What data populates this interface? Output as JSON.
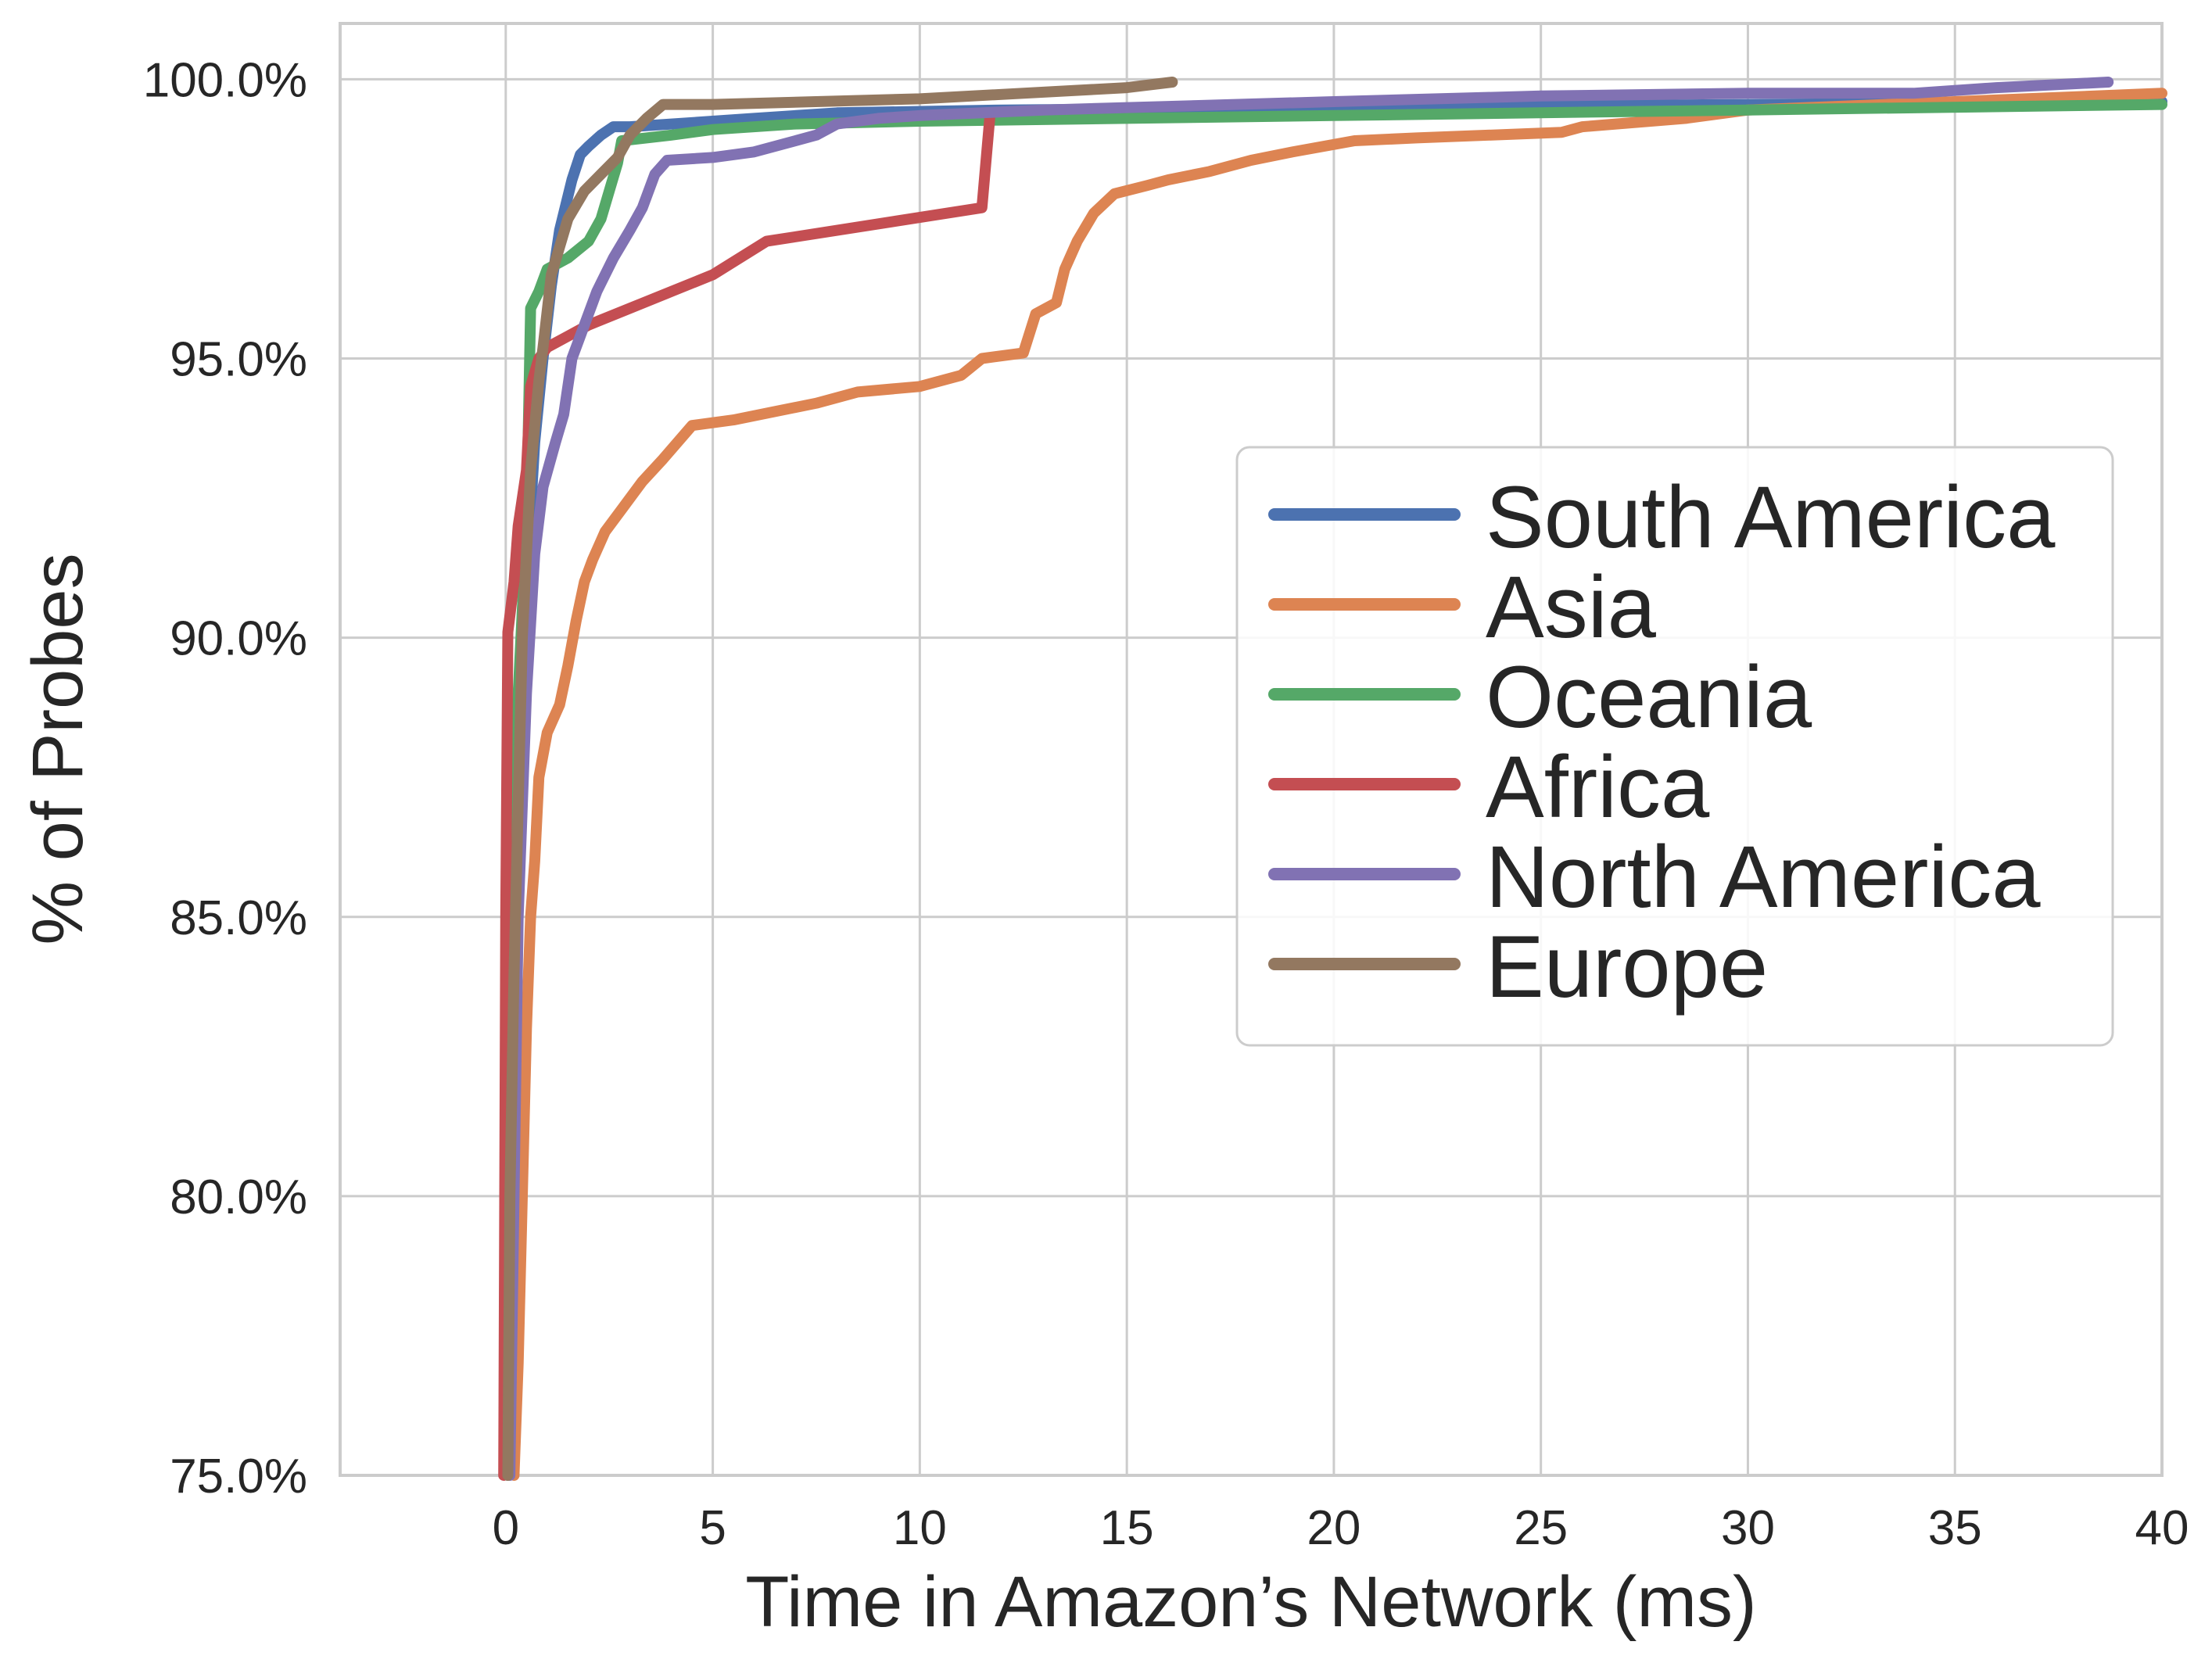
{
  "chart_data": {
    "type": "line",
    "title": "",
    "xlabel": "Time in Amazon’s Network (ms)",
    "ylabel": "% of Probes",
    "xlim": [
      -4,
      40
    ],
    "ylim": [
      75,
      101
    ],
    "xticks": [
      0,
      5,
      10,
      15,
      20,
      25,
      30,
      35,
      40
    ],
    "xtick_labels": [
      "0",
      "5",
      "10",
      "15",
      "20",
      "25",
      "30",
      "35",
      "40"
    ],
    "yticks": [
      75,
      80,
      85,
      90,
      95,
      100
    ],
    "ytick_labels": [
      "75.0%",
      "80.0%",
      "85.0%",
      "90.0%",
      "95.0%",
      "100.0%"
    ],
    "grid": true,
    "legend_position": "center-right",
    "series": [
      {
        "name": "South America",
        "color": "#4c72b0",
        "points": [
          [
            0.05,
            75
          ],
          [
            0.1,
            80
          ],
          [
            0.2,
            85
          ],
          [
            0.3,
            88
          ],
          [
            0.5,
            91
          ],
          [
            0.7,
            93.5
          ],
          [
            0.9,
            95
          ],
          [
            1.1,
            96.3
          ],
          [
            1.3,
            97.3
          ],
          [
            1.6,
            98.2
          ],
          [
            1.8,
            98.65
          ],
          [
            2.0,
            98.8
          ],
          [
            2.3,
            99.0
          ],
          [
            2.6,
            99.15
          ],
          [
            3.0,
            99.15
          ],
          [
            4.0,
            99.2
          ],
          [
            6.0,
            99.3
          ],
          [
            8.0,
            99.4
          ],
          [
            12.0,
            99.45
          ],
          [
            20.0,
            99.5
          ],
          [
            30.0,
            99.55
          ],
          [
            40.0,
            99.6
          ]
        ]
      },
      {
        "name": "Asia",
        "color": "#dd8452",
        "points": [
          [
            0.2,
            75
          ],
          [
            0.3,
            77
          ],
          [
            0.4,
            80
          ],
          [
            0.5,
            83
          ],
          [
            0.6,
            85
          ],
          [
            0.7,
            86
          ],
          [
            0.8,
            87.5
          ],
          [
            1.0,
            88.3
          ],
          [
            1.3,
            88.8
          ],
          [
            1.5,
            89.5
          ],
          [
            1.7,
            90.3
          ],
          [
            1.9,
            91.0
          ],
          [
            2.1,
            91.4
          ],
          [
            2.4,
            91.9
          ],
          [
            2.8,
            92.3
          ],
          [
            3.3,
            92.8
          ],
          [
            3.8,
            93.2
          ],
          [
            4.5,
            93.8
          ],
          [
            5.5,
            93.9
          ],
          [
            6.5,
            94.05
          ],
          [
            7.5,
            94.2
          ],
          [
            8.5,
            94.4
          ],
          [
            10.0,
            94.5
          ],
          [
            11.0,
            94.7
          ],
          [
            11.5,
            95.0
          ],
          [
            12.5,
            95.1
          ],
          [
            12.8,
            95.8
          ],
          [
            13.3,
            96.0
          ],
          [
            13.5,
            96.6
          ],
          [
            13.8,
            97.1
          ],
          [
            14.2,
            97.6
          ],
          [
            14.7,
            97.95
          ],
          [
            15.5,
            98.1
          ],
          [
            16.0,
            98.2
          ],
          [
            17.0,
            98.35
          ],
          [
            18.0,
            98.55
          ],
          [
            19.0,
            98.7
          ],
          [
            20.5,
            98.9
          ],
          [
            22.0,
            98.95
          ],
          [
            25.5,
            99.05
          ],
          [
            26.0,
            99.15
          ],
          [
            28.5,
            99.3
          ],
          [
            30.0,
            99.45
          ],
          [
            35.0,
            99.6
          ],
          [
            40.0,
            99.75
          ]
        ]
      },
      {
        "name": "Oceania",
        "color": "#55a868",
        "points": [
          [
            0.05,
            75
          ],
          [
            0.1,
            80
          ],
          [
            0.2,
            86
          ],
          [
            0.3,
            89
          ],
          [
            0.5,
            92
          ],
          [
            0.6,
            95.9
          ],
          [
            0.8,
            96.2
          ],
          [
            1.0,
            96.6
          ],
          [
            1.5,
            96.8
          ],
          [
            2.0,
            97.1
          ],
          [
            2.3,
            97.5
          ],
          [
            2.5,
            98.0
          ],
          [
            2.7,
            98.5
          ],
          [
            2.8,
            98.9
          ],
          [
            4.0,
            99.0
          ],
          [
            5.0,
            99.1
          ],
          [
            7.0,
            99.2
          ],
          [
            10.0,
            99.25
          ],
          [
            15.0,
            99.3
          ],
          [
            20.0,
            99.35
          ],
          [
            30.0,
            99.45
          ],
          [
            40.0,
            99.55
          ]
        ]
      },
      {
        "name": "Africa",
        "color": "#c44e52",
        "points": [
          [
            -0.05,
            75
          ],
          [
            0.0,
            85
          ],
          [
            0.05,
            90.1
          ],
          [
            0.2,
            91.0
          ],
          [
            0.3,
            92.0
          ],
          [
            0.5,
            93.0
          ],
          [
            0.6,
            94.5
          ],
          [
            0.8,
            95.0
          ],
          [
            1.0,
            95.2
          ],
          [
            1.5,
            95.4
          ],
          [
            2.0,
            95.6
          ],
          [
            3.0,
            95.9
          ],
          [
            4.0,
            96.2
          ],
          [
            5.0,
            96.5
          ],
          [
            6.3,
            97.1
          ],
          [
            11.5,
            97.7
          ],
          [
            11.7,
            99.4
          ]
        ]
      },
      {
        "name": "North America",
        "color": "#8172b3",
        "points": [
          [
            0.1,
            75
          ],
          [
            0.2,
            80
          ],
          [
            0.3,
            85
          ],
          [
            0.5,
            89
          ],
          [
            0.7,
            91.5
          ],
          [
            0.9,
            92.7
          ],
          [
            1.2,
            93.5
          ],
          [
            1.4,
            94.0
          ],
          [
            1.6,
            95.0
          ],
          [
            1.9,
            95.6
          ],
          [
            2.2,
            96.2
          ],
          [
            2.6,
            96.8
          ],
          [
            3.0,
            97.3
          ],
          [
            3.3,
            97.7
          ],
          [
            3.6,
            98.3
          ],
          [
            3.9,
            98.55
          ],
          [
            5.0,
            98.6
          ],
          [
            6.0,
            98.7
          ],
          [
            7.0,
            98.9
          ],
          [
            7.5,
            99.0
          ],
          [
            8.0,
            99.2
          ],
          [
            9.0,
            99.3
          ],
          [
            10.0,
            99.35
          ],
          [
            13.0,
            99.45
          ],
          [
            20.0,
            99.6
          ],
          [
            25.0,
            99.7
          ],
          [
            30.0,
            99.75
          ],
          [
            34.0,
            99.75
          ],
          [
            36.0,
            99.85
          ],
          [
            38.7,
            99.95
          ]
        ]
      },
      {
        "name": "Europe",
        "color": "#937860",
        "points": [
          [
            0.05,
            75
          ],
          [
            0.1,
            80
          ],
          [
            0.2,
            84
          ],
          [
            0.3,
            87
          ],
          [
            0.4,
            90
          ],
          [
            0.6,
            93
          ],
          [
            0.8,
            94.6
          ],
          [
            0.9,
            95.2
          ],
          [
            1.1,
            96.5
          ],
          [
            1.3,
            97.0
          ],
          [
            1.5,
            97.5
          ],
          [
            1.9,
            98.0
          ],
          [
            2.3,
            98.3
          ],
          [
            2.7,
            98.6
          ],
          [
            3.0,
            99.0
          ],
          [
            3.4,
            99.3
          ],
          [
            3.8,
            99.55
          ],
          [
            5.0,
            99.55
          ],
          [
            10.0,
            99.65
          ],
          [
            15.0,
            99.85
          ],
          [
            16.1,
            99.95
          ]
        ]
      }
    ]
  }
}
